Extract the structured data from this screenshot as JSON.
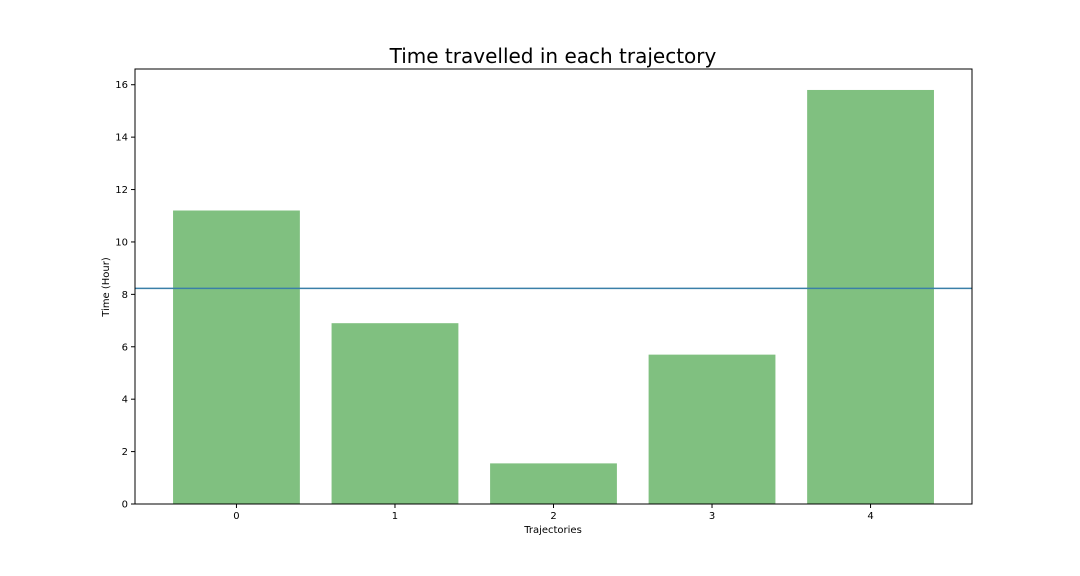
{
  "chart_data": {
    "type": "bar",
    "title": "Time travelled in each trajectory",
    "xlabel": "Trajectories",
    "ylabel": "Time (Hour)",
    "categories": [
      "0",
      "1",
      "2",
      "3",
      "4"
    ],
    "values": [
      11.2,
      6.9,
      1.55,
      5.7,
      15.8
    ],
    "ylim": [
      0,
      16.6
    ],
    "yticks": [
      "0",
      "2",
      "4",
      "6",
      "8",
      "10",
      "12",
      "14",
      "16"
    ],
    "mean_line": 8.23,
    "bar_color": "#80c080",
    "line_color": "#3a7fa8",
    "grid": false,
    "legend": "none"
  }
}
